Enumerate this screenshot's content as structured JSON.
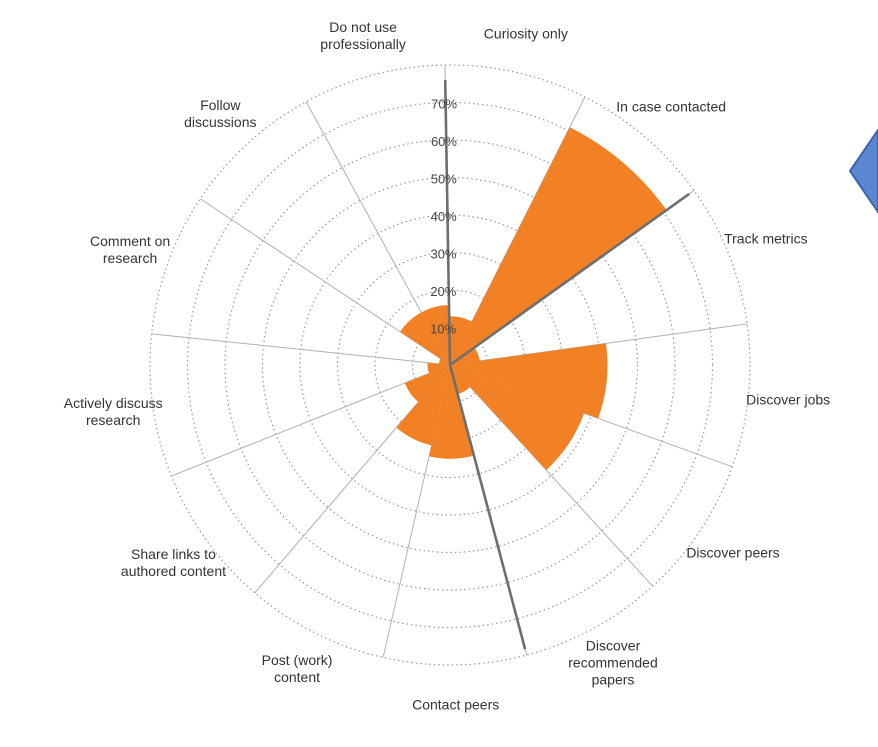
{
  "chart_data": {
    "type": "polar-area",
    "title": "",
    "radial_axis": {
      "min": 0,
      "max": 80,
      "tick_values": [
        10,
        20,
        30,
        40,
        50,
        60,
        70,
        80
      ],
      "tick_labels": [
        "10%",
        "20%",
        "30%",
        "40%",
        "50%",
        "60%",
        "70%"
      ],
      "grid": "dotted-circles"
    },
    "series_color": "#f28125",
    "categories": [
      "Curiosity only",
      "In case contacted",
      "Track metrics",
      "Discover jobs",
      "Discover peers",
      "Discover recommended papers",
      "Contact peers",
      "Post (work) content",
      "Share links to authored content",
      "Actively discuss research",
      "Comment on research",
      "Follow discussions",
      "Do not use professionally"
    ],
    "category_labels": [
      "Curiosity only",
      "In case contacted",
      "Track metrics",
      "Discover jobs",
      "Discover peers",
      "Discover\nrecommended\npapers",
      "Contact peers",
      "Post (work)\ncontent",
      "Share links to\nauthored content",
      "Actively discuss\nresearch",
      "Comment on\nresearch",
      "Follow\ndiscussions",
      "Do not use\nprofessionally"
    ],
    "values": [
      13,
      71,
      8,
      42,
      38,
      8,
      25,
      22,
      13,
      6,
      3,
      16,
      16
    ]
  },
  "decoration": {
    "arrow_fill": "#5b87d1",
    "arrow_stroke": "#3a66b0",
    "arrow_icon": "left-triangle-arrow"
  }
}
